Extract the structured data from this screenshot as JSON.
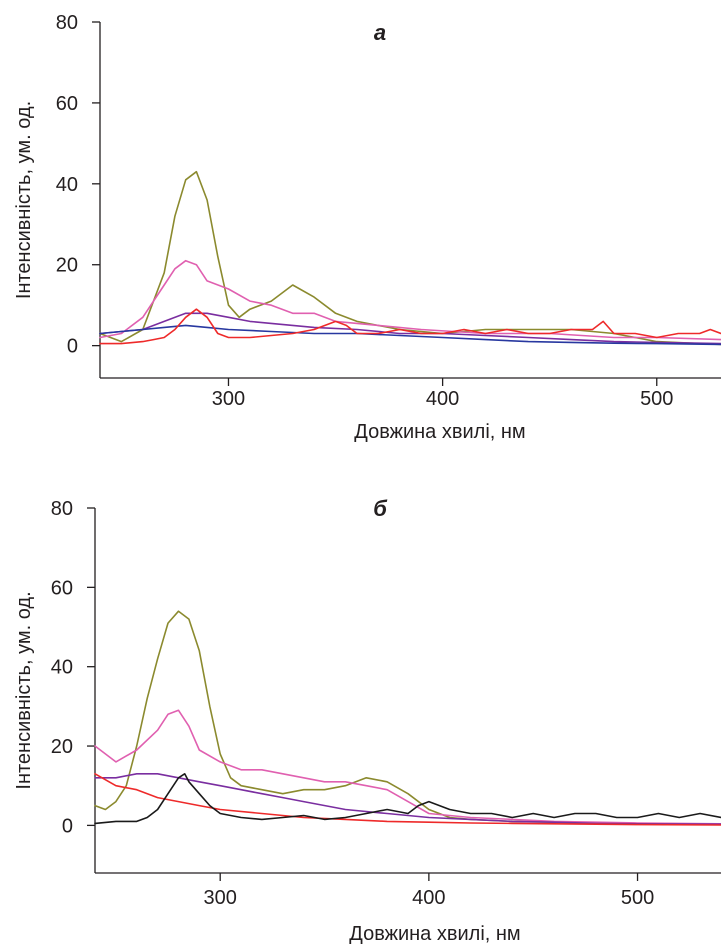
{
  "chart_data": [
    {
      "type": "line",
      "panel_label": "а",
      "xlabel": "Довжина хвилі, нм",
      "ylabel": "Інтенсивність, ум. од.",
      "xlim": [
        240,
        530
      ],
      "ylim": [
        -8,
        80
      ],
      "xticks": [
        300,
        400,
        500
      ],
      "yticks": [
        0,
        20,
        40,
        60,
        80
      ],
      "grid": false,
      "series": [
        {
          "color": "#8b8a2e",
          "x": [
            240,
            250,
            260,
            270,
            275,
            280,
            285,
            290,
            295,
            300,
            305,
            310,
            320,
            330,
            340,
            350,
            360,
            380,
            400,
            420,
            440,
            460,
            480,
            500,
            520,
            530
          ],
          "y": [
            3,
            1,
            4,
            18,
            32,
            41,
            43,
            36,
            22,
            10,
            7,
            9,
            11,
            15,
            12,
            8,
            6,
            4,
            3,
            4,
            4,
            4,
            3,
            1,
            0.5,
            0.3
          ]
        },
        {
          "color": "#e060b0",
          "x": [
            240,
            250,
            260,
            270,
            275,
            280,
            285,
            290,
            300,
            310,
            320,
            330,
            340,
            350,
            370,
            390,
            420,
            450,
            480,
            500,
            530
          ],
          "y": [
            2,
            3,
            7,
            15,
            19,
            21,
            20,
            16,
            14,
            11,
            10,
            8,
            8,
            6,
            5,
            4,
            3,
            3,
            2,
            2,
            1.5
          ]
        },
        {
          "color": "#7a2ea0",
          "x": [
            240,
            250,
            260,
            270,
            280,
            290,
            300,
            310,
            320,
            340,
            360,
            380,
            400,
            420,
            440,
            460,
            480,
            500,
            530
          ],
          "y": [
            3,
            3.5,
            4,
            6,
            8,
            8,
            7,
            6,
            5.5,
            4.5,
            4,
            3,
            3,
            2.5,
            2,
            1.5,
            1,
            0.8,
            0.5
          ]
        },
        {
          "color": "#2838a0",
          "x": [
            240,
            250,
            260,
            270,
            280,
            290,
            300,
            320,
            340,
            360,
            380,
            400,
            420,
            440,
            460,
            480,
            500,
            530
          ],
          "y": [
            3,
            3.5,
            4,
            4.5,
            5,
            4.5,
            4,
            3.5,
            3,
            3,
            2.5,
            2,
            1.5,
            1,
            0.8,
            0.6,
            0.5,
            0.3
          ]
        },
        {
          "color": "#ee2a2a",
          "x": [
            240,
            250,
            260,
            265,
            270,
            275,
            280,
            285,
            290,
            295,
            300,
            310,
            320,
            330,
            340,
            350,
            355,
            360,
            370,
            380,
            390,
            400,
            410,
            420,
            430,
            440,
            450,
            460,
            470,
            475,
            480,
            490,
            500,
            510,
            520,
            525,
            530
          ],
          "y": [
            0.5,
            0.5,
            1,
            1.5,
            2,
            4,
            7,
            9,
            7,
            3,
            2,
            2,
            2.5,
            3,
            4,
            6,
            5,
            3,
            3,
            4,
            3,
            3,
            4,
            3,
            4,
            3,
            3,
            4,
            4,
            6,
            3,
            3,
            2,
            3,
            3,
            4,
            3
          ]
        }
      ]
    },
    {
      "type": "line",
      "panel_label": "б",
      "xlabel": "Довжина хвилі, нм",
      "ylabel": "Інтенсивність, ум. од.",
      "xlim": [
        240,
        540
      ],
      "ylim": [
        -12,
        80
      ],
      "xticks": [
        300,
        400,
        500
      ],
      "yticks": [
        0,
        20,
        40,
        60,
        80
      ],
      "grid": false,
      "series": [
        {
          "color": "#8b8a2e",
          "x": [
            240,
            245,
            250,
            255,
            260,
            265,
            270,
            275,
            280,
            285,
            290,
            295,
            300,
            305,
            310,
            320,
            330,
            340,
            350,
            360,
            370,
            380,
            390,
            400,
            410,
            420,
            440,
            460,
            480,
            500,
            520,
            540
          ],
          "y": [
            5,
            4,
            6,
            10,
            20,
            32,
            42,
            51,
            54,
            52,
            44,
            30,
            18,
            12,
            10,
            9,
            8,
            9,
            9,
            10,
            12,
            11,
            8,
            4,
            2,
            1.5,
            1,
            0.8,
            0.6,
            0.5,
            0.4,
            0.3
          ]
        },
        {
          "color": "#e060b0",
          "x": [
            240,
            250,
            260,
            270,
            275,
            280,
            285,
            290,
            300,
            310,
            320,
            330,
            340,
            350,
            360,
            370,
            380,
            390,
            400,
            420,
            440,
            460,
            480,
            500,
            520,
            540
          ],
          "y": [
            20,
            16,
            19,
            24,
            28,
            29,
            25,
            19,
            16,
            14,
            14,
            13,
            12,
            11,
            11,
            10,
            9,
            6,
            3,
            2,
            1.5,
            1,
            0.8,
            0.6,
            0.5,
            0.4
          ]
        },
        {
          "color": "#7a2ea0",
          "x": [
            240,
            250,
            260,
            270,
            280,
            290,
            300,
            310,
            320,
            330,
            340,
            360,
            380,
            400,
            420,
            440,
            460,
            480,
            500,
            540
          ],
          "y": [
            12,
            12,
            13,
            13,
            12,
            11,
            10,
            9,
            8,
            7,
            6,
            4,
            3,
            2,
            1.5,
            1,
            0.8,
            0.5,
            0.4,
            0.3
          ]
        },
        {
          "color": "#ee2a2a",
          "x": [
            240,
            250,
            260,
            270,
            280,
            290,
            300,
            320,
            340,
            360,
            380,
            400,
            420,
            440,
            460,
            480,
            500,
            540
          ],
          "y": [
            13,
            10,
            9,
            7,
            6,
            5,
            4,
            3,
            2,
            1.5,
            1,
            0.8,
            0.6,
            0.5,
            0.4,
            0.3,
            0.2,
            0.1
          ]
        },
        {
          "color": "#1a1a1a",
          "x": [
            240,
            250,
            260,
            265,
            270,
            275,
            280,
            283,
            285,
            290,
            295,
            300,
            310,
            320,
            330,
            340,
            350,
            360,
            370,
            380,
            390,
            395,
            400,
            410,
            420,
            430,
            440,
            450,
            460,
            470,
            480,
            490,
            500,
            510,
            520,
            530,
            540
          ],
          "y": [
            0.5,
            1,
            1,
            2,
            4,
            8,
            12,
            13,
            11,
            8,
            5,
            3,
            2,
            1.5,
            2,
            2.5,
            1.5,
            2,
            3,
            4,
            3,
            5,
            6,
            4,
            3,
            3,
            2,
            3,
            2,
            3,
            3,
            2,
            2,
            3,
            2,
            3,
            2
          ]
        }
      ]
    }
  ]
}
